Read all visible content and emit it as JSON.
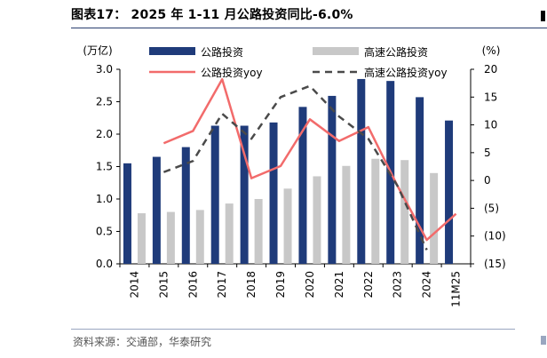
{
  "header": {
    "title": "图表17：  2025 年 1-11 月公路投资同比-6.0%"
  },
  "footer": {
    "source": "资料来源：交通部，华泰研究"
  },
  "chart_data": {
    "type": "bar",
    "categories": [
      "2014",
      "2015",
      "2016",
      "2017",
      "2018",
      "2019",
      "2020",
      "2021",
      "2022",
      "2023",
      "2024",
      "11M25"
    ],
    "left_axis": {
      "unit": "(万亿)",
      "ylim": [
        0,
        3.0
      ],
      "ticks": [
        "0.0",
        "0.5",
        "1.0",
        "1.5",
        "2.0",
        "2.5",
        "3.0"
      ],
      "tick_values": [
        0,
        0.5,
        1.0,
        1.5,
        2.0,
        2.5,
        3.0
      ]
    },
    "right_axis": {
      "unit": "(%)",
      "ylim": [
        -15,
        20
      ],
      "ticks": [
        "(15)",
        "(10)",
        "(5)",
        "0",
        "5",
        "10",
        "15",
        "20"
      ],
      "tick_values": [
        -15,
        -10,
        -5,
        0,
        5,
        10,
        15,
        20
      ]
    },
    "series": [
      {
        "name": "公路投资",
        "type": "bar",
        "axis": "left",
        "color": "#1f3b7a",
        "values": [
          1.55,
          1.65,
          1.8,
          2.13,
          2.13,
          2.18,
          2.42,
          2.59,
          2.85,
          2.82,
          2.57,
          2.21
        ]
      },
      {
        "name": "高速公路投资",
        "type": "bar",
        "axis": "left",
        "color": "#c8c8c8",
        "values": [
          0.78,
          0.8,
          0.83,
          0.93,
          1.0,
          1.16,
          1.35,
          1.51,
          1.62,
          1.6,
          1.4,
          null
        ]
      },
      {
        "name": "公路投资yoy",
        "type": "line",
        "axis": "right",
        "color": "#f26b6b",
        "dash": false,
        "values": [
          null,
          6.7,
          8.9,
          18.2,
          0.4,
          2.6,
          11.0,
          7.1,
          9.6,
          -1.0,
          -10.7,
          -6.0
        ]
      },
      {
        "name": "高速公路投资yoy",
        "type": "line",
        "axis": "right",
        "color": "#4a4a4a",
        "dash": true,
        "values": [
          null,
          1.5,
          3.5,
          12.0,
          7.5,
          15.0,
          17.0,
          11.5,
          7.5,
          -1.0,
          -12.5,
          null
        ]
      }
    ],
    "legend": "top"
  }
}
